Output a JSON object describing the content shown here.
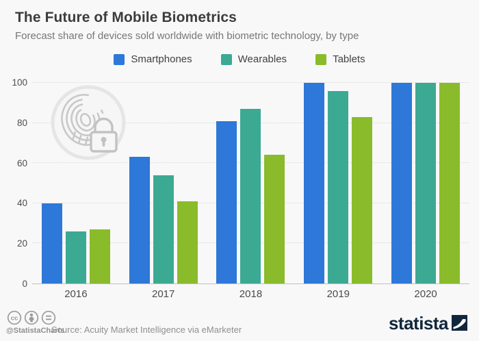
{
  "title": "The Future of Mobile Biometrics",
  "subtitle": "Forecast share of devices sold worldwide with biometric technology, by type",
  "chart_data": {
    "type": "bar",
    "categories": [
      "2016",
      "2017",
      "2018",
      "2019",
      "2020"
    ],
    "series": [
      {
        "name": "Smartphones",
        "color": "#2D78D8",
        "values": [
          40,
          63,
          81,
          100,
          100
        ]
      },
      {
        "name": "Wearables",
        "color": "#3CA993",
        "values": [
          26,
          54,
          87,
          96,
          100
        ]
      },
      {
        "name": "Tablets",
        "color": "#8ABB2A",
        "values": [
          27,
          41,
          64,
          83,
          100
        ]
      }
    ],
    "ylabel": "",
    "xlabel": "",
    "ylim": [
      0,
      100
    ],
    "yticks": [
      0,
      20,
      40,
      60,
      80,
      100
    ],
    "grid": "horizontal-dotted",
    "legend_position": "top-center",
    "watermark": "fingerprint-lock"
  },
  "footer": {
    "handle": "@StatistaCharts",
    "source": "Source: Acuity Market Intelligence via eMarketer",
    "brand": "statista",
    "license_icons": [
      "cc-icon",
      "attribution-icon",
      "equals-icon"
    ]
  },
  "colors": {
    "background": "#f8f8f8",
    "title": "#3c3c3c",
    "subtitle": "#767676",
    "axis_text": "#4d4d4d",
    "gridline": "#d9d9d9",
    "axis_line": "#bfbfbf",
    "footer_text": "#8f8f8f",
    "brand_navy": "#12263b",
    "watermark_gray": "#c8c8c8"
  }
}
